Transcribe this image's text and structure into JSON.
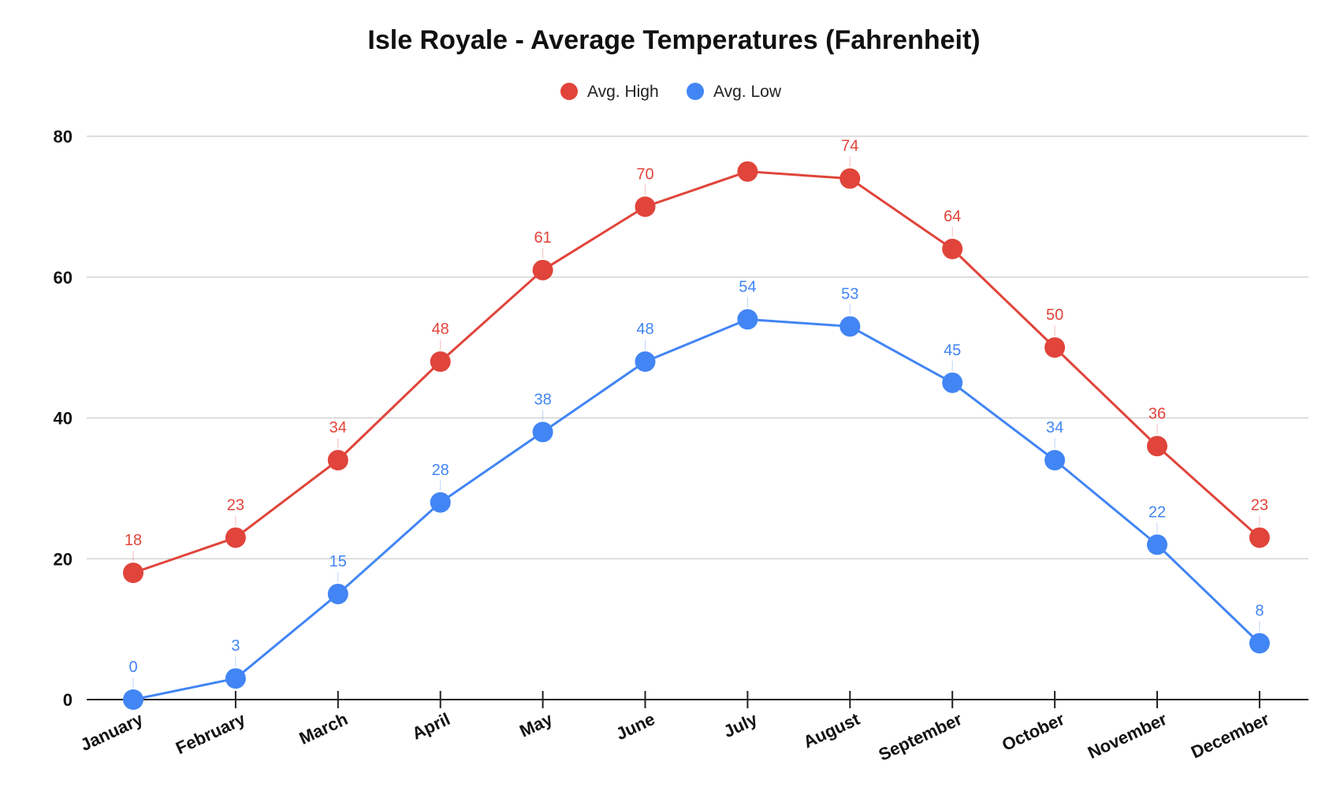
{
  "chart_data": {
    "type": "line",
    "title": "Isle Royale - Average Temperatures (Fahrenheit)",
    "xlabel": "",
    "ylabel": "",
    "categories": [
      "January",
      "February",
      "March",
      "April",
      "May",
      "June",
      "July",
      "August",
      "September",
      "October",
      "November",
      "December"
    ],
    "series": [
      {
        "name": "Avg. High",
        "color": "#E0443A",
        "values": [
          18,
          23,
          34,
          48,
          61,
          70,
          75,
          74,
          64,
          50,
          36,
          23
        ],
        "labels": [
          "18",
          "23",
          "34",
          "48",
          "61",
          "70",
          "",
          "74",
          "64",
          "50",
          "36",
          "23"
        ]
      },
      {
        "name": "Avg. Low",
        "color": "#4285F4",
        "values": [
          0,
          3,
          15,
          28,
          38,
          48,
          54,
          53,
          45,
          34,
          22,
          8
        ],
        "labels": [
          "0",
          "3",
          "15",
          "28",
          "38",
          "48",
          "54",
          "53",
          "45",
          "34",
          "22",
          "8"
        ]
      }
    ],
    "y_ticks": [
      "0",
      "20",
      "40",
      "60",
      "80"
    ],
    "ylim": [
      0,
      80
    ],
    "grid": true,
    "legend_position": "top-center",
    "x_tick_rotation_deg": -25
  }
}
